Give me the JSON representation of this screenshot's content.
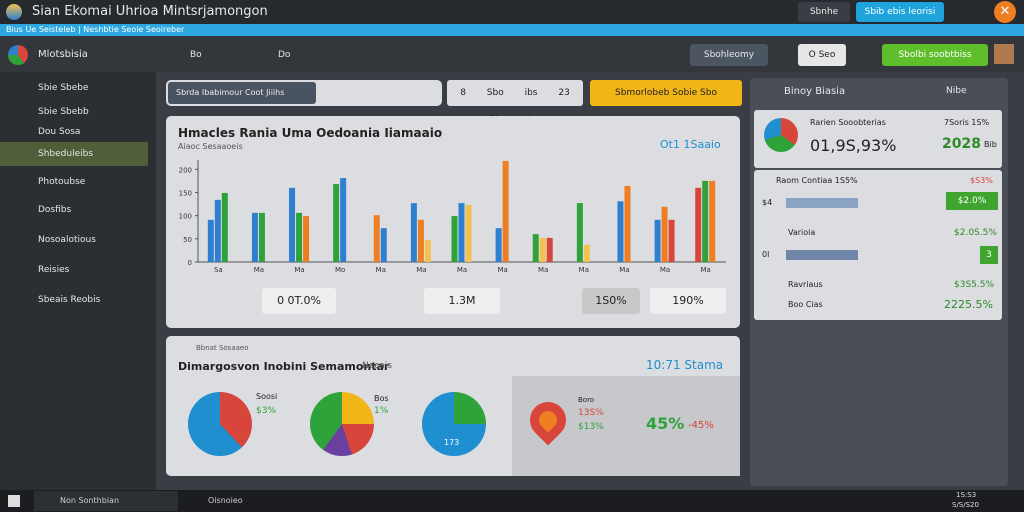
{
  "title_bar": {
    "title": "Sian Ekomai Uhrioa Mintsrjamongon",
    "buttons": [
      "Sbnhe",
      "Sbib ebis leorisi"
    ]
  },
  "info_strip": "Bius Ue Seisteleb  |  Neshbtie Seoie Seoireber",
  "toolbar": {
    "app": "Mlotsbisia",
    "items": [
      "Bo",
      "Do"
    ],
    "right": [
      "Sbohleomy",
      "O Seo",
      "Sbolbi soobtbiss"
    ]
  },
  "sidebar": {
    "items": [
      "Sbie Sbebe",
      "Sbie Sbebb",
      "Dou Sosa",
      "Shbeduleibs",
      "Photoubse",
      "Dosfibs",
      "Nosoalotious",
      "Reisies",
      "Sbeais Reobis"
    ],
    "active": 3
  },
  "filters": [
    "Sbrda Ibabimour Coot Jiiihs",
    "8 Sbo ibs",
    "23 Sbo ibs",
    "Sbmorlobeb Sobie Sbo"
  ],
  "chart_card": {
    "title": "Hmacles Rania Uma Oedoania Iiamaaio",
    "subtitle": "Aiaoc Sesaaoeis",
    "badge": "Ot1 1Saaio",
    "kpis": [
      "0 0T.0%",
      "1.3M",
      "1S0%",
      "190%"
    ],
    "chart_data": {
      "type": "bar",
      "ylim": [
        0,
        220
      ],
      "yticks": [
        0,
        50,
        100,
        150,
        200
      ],
      "categories": [
        "Sa",
        "Ma",
        "Ma",
        "Mo",
        "Ma",
        "Ma",
        "Ma",
        "Ma",
        "Ma",
        "Ma",
        "Ma",
        "Ma",
        "Ma"
      ],
      "groups": [
        [
          {
            "color": "#2f7fd0",
            "value": 91
          },
          {
            "color": "#2f7fd0",
            "value": 134
          },
          {
            "color": "#2ea33a",
            "value": 149
          }
        ],
        [
          {
            "color": "#2f7fd0",
            "value": 106
          },
          {
            "color": "#2ea33a",
            "value": 106
          }
        ],
        [
          {
            "color": "#2f7fd0",
            "value": 160
          },
          {
            "color": "#2ea33a",
            "value": 106
          },
          {
            "color": "#ef7d22",
            "value": 99
          }
        ],
        [
          {
            "color": "#2ea33a",
            "value": 168
          },
          {
            "color": "#2f7fd0",
            "value": 181
          }
        ],
        [
          {
            "color": "#ef7d22",
            "value": 101
          },
          {
            "color": "#2f7fd0",
            "value": 73
          }
        ],
        [
          {
            "color": "#2f7fd0",
            "value": 127
          },
          {
            "color": "#ef7d22",
            "value": 91
          },
          {
            "color": "#f2c14e",
            "value": 47
          }
        ],
        [
          {
            "color": "#2ea33a",
            "value": 99
          },
          {
            "color": "#2f7fd0",
            "value": 127
          },
          {
            "color": "#f2c14e",
            "value": 123
          }
        ],
        [
          {
            "color": "#2f7fd0",
            "value": 73
          },
          {
            "color": "#ef7d22",
            "value": 218
          }
        ],
        [
          {
            "color": "#2ea33a",
            "value": 60
          },
          {
            "color": "#f2c14e",
            "value": 52
          },
          {
            "color": "#d8453a",
            "value": 52
          }
        ],
        [
          {
            "color": "#2ea33a",
            "value": 127
          },
          {
            "color": "#f2c14e",
            "value": 37
          }
        ],
        [
          {
            "color": "#2f7fd0",
            "value": 131
          },
          {
            "color": "#ef7d22",
            "value": 164
          }
        ],
        [
          {
            "color": "#2f7fd0",
            "value": 91
          },
          {
            "color": "#ef7d22",
            "value": 119
          },
          {
            "color": "#d8453a",
            "value": 91
          }
        ],
        [
          {
            "color": "#d8453a",
            "value": 160
          },
          {
            "color": "#2ea33a",
            "value": 175
          },
          {
            "color": "#ef7d22",
            "value": 175
          }
        ]
      ]
    }
  },
  "bottom_card": {
    "header": "Bbnat Sosaaeo",
    "title": "Dimargosvon Inobini Semamontar",
    "tag": "Necais",
    "badge": "10:71 Stama",
    "pies": [
      [
        "Soosi",
        "$3%"
      ],
      [
        "Bos",
        "1%"
      ],
      [
        "173"
      ],
      [
        "Boro",
        "13S%",
        "$13%"
      ]
    ],
    "big": "45%",
    "small": "-45%"
  },
  "right_panel": {
    "title": "Binoy Biasia",
    "dropdown": "Nibe",
    "summary": {
      "label": "Rarien Sooobterias",
      "change": "7Soris 1S%",
      "main": "01,9S,93%",
      "right": "2028",
      "unit": "Bib"
    },
    "rows": [
      [
        "Raom Contiaa 1S5%",
        "$S3%",
        "$4",
        "$2.0%"
      ],
      [
        "Varioia",
        "$2.0S.5%",
        "0l",
        "3"
      ],
      [
        "Ravriaus",
        "$3S5.5%"
      ],
      [
        "Boo Cias",
        "2225.5%"
      ]
    ]
  },
  "taskbar": {
    "search": "Non Sonthbian",
    "app": "Oisnoieo",
    "time": "1S:S3",
    "date": "S/S/S20"
  }
}
